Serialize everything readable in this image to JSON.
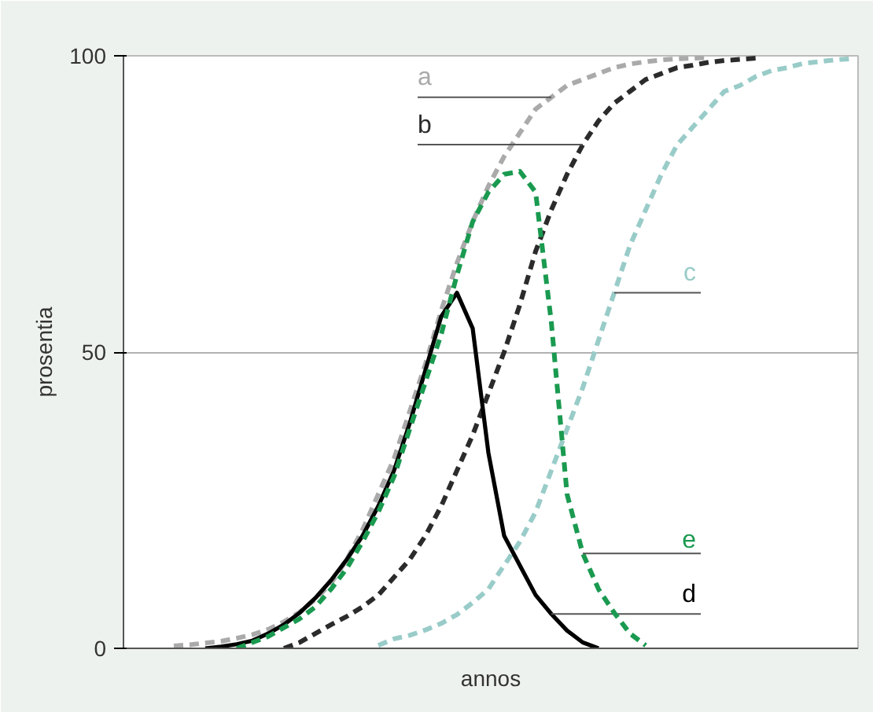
{
  "chart_data": {
    "type": "line",
    "xlabel": "annos",
    "ylabel": "prosentia",
    "categories": [
      null,
      null,
      null,
      null,
      null,
      null,
      null,
      null,
      null,
      null,
      null,
      null,
      null,
      null,
      null,
      null,
      null,
      null,
      null,
      null,
      null,
      null,
      null,
      null,
      null,
      null,
      null,
      null,
      null,
      null,
      null,
      null,
      null,
      null,
      null,
      null,
      null,
      null,
      null,
      null,
      null,
      null,
      null,
      null,
      null
    ],
    "ylim": [
      0,
      100
    ],
    "yticks": [
      0,
      50,
      100
    ],
    "grid": "y",
    "tick_labels": "y",
    "series": [
      {
        "name": "a",
        "color": "#aaaaaa",
        "line_style": "dashed",
        "values": [
          null,
          0.4,
          0.6,
          0.9,
          1.2,
          1.7,
          2.3,
          3.2,
          4.5,
          6.1,
          8.3,
          11,
          15,
          20,
          26,
          32,
          40,
          48,
          57,
          65,
          72,
          78,
          83,
          87,
          91,
          93,
          95,
          96,
          97,
          98,
          98.6,
          99,
          99.3,
          99.5,
          99.6,
          99.7,
          null,
          null,
          null,
          null,
          null,
          null,
          null,
          null,
          null
        ]
      },
      {
        "name": "b",
        "color": "#2b2b2b",
        "line_style": "dashed",
        "values": [
          null,
          null,
          null,
          null,
          null,
          null,
          null,
          null,
          0,
          1,
          2.5,
          4,
          5.4,
          7,
          9,
          12,
          15,
          19,
          24,
          30,
          36,
          43,
          50,
          58,
          67,
          74,
          80,
          85,
          89,
          92,
          94,
          96,
          97,
          98,
          98.4,
          98.9,
          99.2,
          99.4,
          99.6,
          null,
          null,
          null,
          null,
          null,
          null
        ]
      },
      {
        "name": "c",
        "color": "#99ccc8",
        "line_style": "dashed",
        "values": [
          null,
          null,
          null,
          null,
          null,
          null,
          null,
          null,
          null,
          null,
          null,
          null,
          null,
          null,
          0.5,
          1.6,
          2.2,
          3.1,
          4.2,
          5.7,
          7.7,
          10,
          14,
          18,
          23,
          30,
          37,
          44,
          52,
          60,
          68,
          74,
          80,
          85,
          88,
          91,
          94,
          95,
          96.5,
          97.5,
          98,
          98.7,
          99,
          99.3,
          99.5
        ]
      },
      {
        "name": "d",
        "color": "#000000",
        "line_style": "solid",
        "values": [
          null,
          null,
          null,
          0,
          0.3,
          0.7,
          1.3,
          2.5,
          4,
          6,
          8.5,
          11.5,
          15,
          19,
          24,
          30,
          38,
          47,
          56,
          60,
          54,
          33,
          19,
          14,
          9,
          5.8,
          3,
          1,
          0,
          null,
          null,
          null,
          null,
          null,
          null,
          null,
          null,
          null,
          null,
          null,
          null,
          null,
          null,
          null,
          null
        ]
      },
      {
        "name": "e",
        "color": "#1a9a50",
        "line_style": "dashed",
        "values": [
          null,
          null,
          null,
          null,
          null,
          0,
          1,
          2,
          3.5,
          5,
          7,
          10,
          13.5,
          18,
          23,
          29,
          37,
          45,
          53,
          63,
          72,
          77,
          80,
          80.5,
          77,
          55,
          26,
          16,
          10,
          6,
          2.5,
          0.5,
          null,
          null,
          null,
          null,
          null,
          null,
          null,
          null,
          null,
          null,
          null,
          null,
          null
        ]
      }
    ]
  }
}
